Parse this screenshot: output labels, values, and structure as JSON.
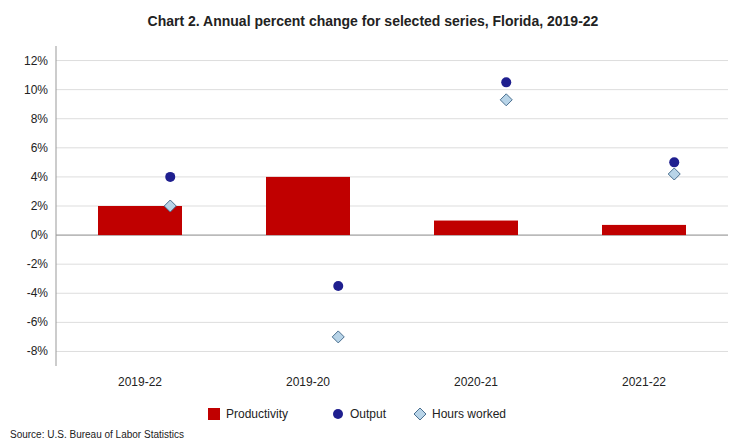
{
  "chart_data": {
    "type": "bar",
    "title": "Chart 2. Annual percent change for selected series, Florida, 2019-22",
    "categories": [
      "2019-22",
      "2019-20",
      "2020-21",
      "2021-22"
    ],
    "series": [
      {
        "name": "Productivity",
        "type": "bar",
        "color": "#C00000",
        "values": [
          2.0,
          4.0,
          1.0,
          0.7
        ]
      },
      {
        "name": "Output",
        "type": "scatter",
        "marker": "circle",
        "color": "#1F1F8F",
        "values": [
          4.0,
          -3.5,
          10.5,
          5.0
        ]
      },
      {
        "name": "Hours worked",
        "type": "scatter",
        "marker": "diamond",
        "color": "#B8D4E8",
        "values": [
          2.0,
          -7.0,
          9.3,
          4.2
        ]
      }
    ],
    "ylim": [
      -9,
      13
    ],
    "yticks": [
      {
        "value": -8,
        "label": "-8%"
      },
      {
        "value": -6,
        "label": "-6%"
      },
      {
        "value": -4,
        "label": "-4%"
      },
      {
        "value": -2,
        "label": "-2%"
      },
      {
        "value": 0,
        "label": "0%"
      },
      {
        "value": 2,
        "label": "2%"
      },
      {
        "value": 4,
        "label": "4%"
      },
      {
        "value": 6,
        "label": "6%"
      },
      {
        "value": 8,
        "label": "8%"
      },
      {
        "value": 10,
        "label": "10%"
      },
      {
        "value": 12,
        "label": "12%"
      }
    ],
    "grid": true,
    "legend": "bottom",
    "source": "Source: U.S. Bureau of Labor Statistics"
  }
}
